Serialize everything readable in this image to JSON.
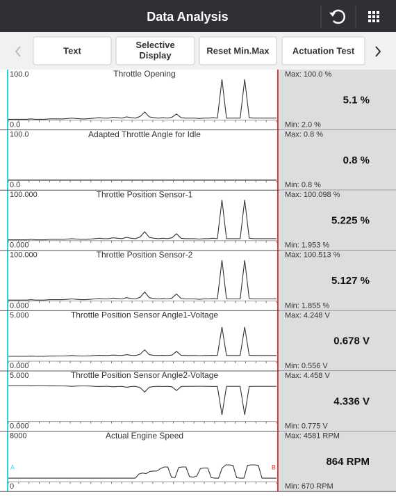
{
  "header": {
    "title": "Data Analysis"
  },
  "toolbar": {
    "buttons": [
      "Text",
      "Selective Display",
      "Reset Min.Max",
      "Actuation Test"
    ]
  },
  "cursors": {
    "left": "A",
    "right": "B"
  },
  "panels": [
    {
      "title": "Throttle Opening",
      "ylim": [
        {
          "value": 0,
          "label": "0.0"
        },
        {
          "value": 100,
          "label": "100.0"
        }
      ],
      "max": "Max: 100.0 %",
      "value": "5.1 %",
      "min": "Min: 2.0 %",
      "trace": [
        2,
        2,
        2,
        2,
        2,
        3,
        2,
        2,
        2,
        3,
        3,
        3,
        3,
        4,
        5,
        4,
        3,
        3,
        4,
        5,
        6,
        5,
        5,
        7,
        6,
        5,
        8,
        6,
        5,
        9,
        20,
        8,
        6,
        5,
        6,
        5,
        7,
        15,
        6,
        5,
        5,
        5,
        4,
        5,
        5,
        6,
        5,
        100,
        5,
        5,
        5,
        5,
        100,
        6,
        5,
        5,
        5,
        5,
        5,
        5
      ]
    },
    {
      "title": "Adapted Throttle Angle for Idle",
      "ylim": [
        {
          "value": 0,
          "label": "0.0"
        },
        {
          "value": 100,
          "label": "100.0"
        }
      ],
      "max": "Max: 0.8 %",
      "value": "0.8 %",
      "min": "Min: 0.8 %",
      "trace": [
        0.8,
        0.8
      ]
    },
    {
      "title": "Throttle Position Sensor-1",
      "ylim": [
        {
          "value": 0,
          "label": "0.000"
        },
        {
          "value": 100,
          "label": "100.000"
        }
      ],
      "max": "Max: 100.098 %",
      "value": "5.225 %",
      "min": "Min: 1.953 %",
      "trace": [
        2,
        2,
        2,
        2,
        2,
        3,
        2,
        2,
        2,
        3,
        3,
        3,
        3,
        4,
        5,
        4,
        3,
        3,
        4,
        5,
        6,
        5,
        5,
        7,
        6,
        5,
        8,
        6,
        5,
        9,
        22,
        8,
        6,
        5,
        6,
        5,
        7,
        17,
        6,
        5,
        5,
        5,
        4,
        5,
        5,
        6,
        5,
        100,
        5,
        5,
        5,
        5,
        100,
        6,
        5,
        5,
        5,
        5,
        5,
        5
      ]
    },
    {
      "title": "Throttle Position Sensor-2",
      "ylim": [
        {
          "value": 0,
          "label": "0.000"
        },
        {
          "value": 100,
          "label": "100.000"
        }
      ],
      "max": "Max: 100.513 %",
      "value": "5.127 %",
      "min": "Min: 1.855 %",
      "trace": [
        2,
        2,
        2,
        2,
        2,
        3,
        2,
        2,
        2,
        3,
        3,
        3,
        3,
        4,
        5,
        4,
        3,
        3,
        4,
        5,
        6,
        5,
        5,
        7,
        6,
        5,
        8,
        6,
        5,
        9,
        22,
        8,
        6,
        5,
        6,
        5,
        7,
        17,
        6,
        5,
        5,
        5,
        4,
        5,
        5,
        6,
        5,
        100,
        5,
        5,
        5,
        5,
        100,
        6,
        5,
        5,
        5,
        5,
        5,
        5
      ]
    },
    {
      "title": "Throttle Position Sensor Angle1-Voltage",
      "ylim": [
        {
          "value": 0,
          "label": "0.000"
        },
        {
          "value": 5,
          "label": "5.000"
        }
      ],
      "max": "Max: 4.248 V",
      "value": "0.678 V",
      "min": "Min: 0.556 V",
      "trace": [
        0.6,
        0.6,
        0.6,
        0.6,
        0.6,
        0.62,
        0.6,
        0.6,
        0.6,
        0.63,
        0.63,
        0.64,
        0.64,
        0.66,
        0.7,
        0.66,
        0.64,
        0.64,
        0.66,
        0.7,
        0.72,
        0.7,
        0.7,
        0.75,
        0.72,
        0.7,
        0.8,
        0.72,
        0.7,
        0.85,
        1.4,
        0.8,
        0.72,
        0.7,
        0.72,
        0.7,
        0.75,
        1.2,
        0.72,
        0.7,
        0.7,
        0.7,
        0.68,
        0.7,
        0.7,
        0.72,
        0.7,
        4.2,
        0.7,
        0.7,
        0.7,
        0.7,
        4.2,
        0.72,
        0.7,
        0.7,
        0.7,
        0.7,
        0.7,
        0.7
      ]
    },
    {
      "title": "Throttle Position Sensor Angle2-Voltage",
      "ylim": [
        {
          "value": 0,
          "label": "0.000"
        },
        {
          "value": 5,
          "label": "5.000"
        }
      ],
      "max": "Max: 4.458 V",
      "value": "4.336 V",
      "min": "Min: 0.775 V",
      "trace": [
        4.4,
        4.4,
        4.4,
        4.4,
        4.4,
        4.38,
        4.4,
        4.4,
        4.4,
        4.37,
        4.37,
        4.36,
        4.36,
        4.34,
        4.3,
        4.34,
        4.36,
        4.36,
        4.34,
        4.3,
        4.28,
        4.3,
        4.3,
        4.25,
        4.28,
        4.3,
        4.2,
        4.28,
        4.3,
        4.15,
        3.6,
        4.2,
        4.28,
        4.3,
        4.28,
        4.3,
        4.25,
        3.8,
        4.28,
        4.3,
        4.3,
        4.3,
        4.32,
        4.3,
        4.3,
        4.28,
        4.3,
        0.8,
        4.3,
        4.3,
        4.3,
        4.3,
        0.8,
        4.28,
        4.3,
        4.3,
        4.3,
        4.3,
        4.3,
        4.3
      ]
    },
    {
      "title": "Actual Engine Speed",
      "ylim": [
        {
          "value": 0,
          "label": "0"
        },
        {
          "value": 8000,
          "label": "8000"
        }
      ],
      "max": "Max: 4581 RPM",
      "value": "864 RPM",
      "min": "Min: 670 RPM",
      "trace": [
        700,
        700,
        700,
        700,
        700,
        700,
        700,
        700,
        700,
        700,
        700,
        700,
        700,
        700,
        700,
        700,
        700,
        700,
        700,
        700,
        700,
        700,
        700,
        700,
        700,
        700,
        700,
        700,
        700,
        700,
        700,
        700,
        700,
        700,
        700,
        700,
        1500,
        1700,
        1600,
        2000,
        2100,
        2100,
        2600,
        2900,
        2900,
        900,
        800,
        2800,
        2900,
        2900,
        1000,
        900,
        1100,
        2600,
        2700,
        2700,
        800,
        700,
        700,
        2700,
        3300,
        3300,
        3200,
        800,
        700,
        700,
        3200,
        3300,
        3300,
        3200,
        700,
        700,
        700,
        700,
        700
      ]
    }
  ]
}
